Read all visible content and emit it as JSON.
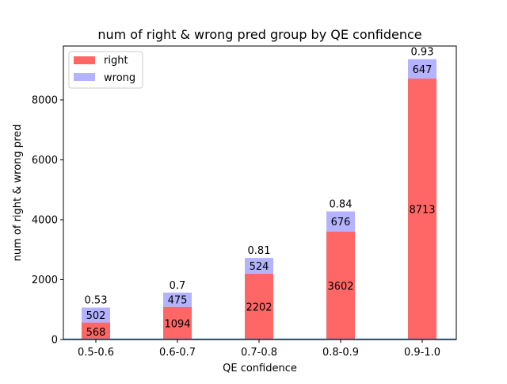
{
  "chart_data": {
    "type": "bar",
    "stacked": true,
    "title": "num of right & wrong pred group by QE confidence",
    "xlabel": "QE confidence",
    "ylabel": "num of right & wrong pred",
    "categories": [
      "0.5-0.6",
      "0.6-0.7",
      "0.7-0.8",
      "0.8-0.9",
      "0.9-1.0"
    ],
    "series": [
      {
        "name": "right",
        "values": [
          568,
          1094,
          2202,
          3602,
          8713
        ],
        "color": "#ff6666"
      },
      {
        "name": "wrong",
        "values": [
          502,
          475,
          524,
          676,
          647
        ],
        "color": "#b3b3ff"
      }
    ],
    "ratio_labels": [
      "0.53",
      "0.7",
      "0.81",
      "0.84",
      "0.93"
    ],
    "ylim": [
      0,
      9800
    ],
    "yticks": [
      0,
      2000,
      4000,
      6000,
      8000
    ],
    "legend_position": "top-left",
    "grid": false,
    "baseline_color": "#1f77b4"
  }
}
